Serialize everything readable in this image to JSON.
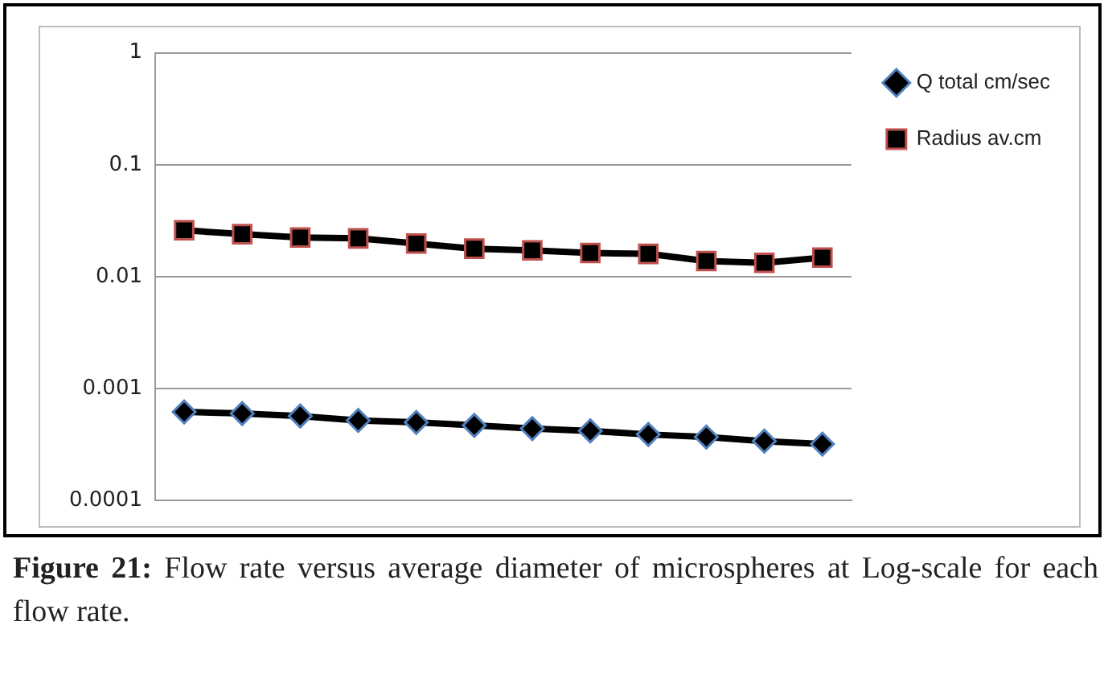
{
  "chart_data": {
    "type": "line",
    "categories": [
      null,
      null,
      null,
      null,
      null,
      null,
      null,
      null,
      null,
      null,
      null,
      null
    ],
    "series": [
      {
        "name": "Q total cm/sec",
        "color": "#000000",
        "marker": "diamond",
        "values": [
          0.00062,
          0.0006,
          0.00057,
          0.00052,
          0.0005,
          0.00047,
          0.00044,
          0.00042,
          0.00039,
          0.00037,
          0.00034,
          0.00032
        ]
      },
      {
        "name": "Radius av.cm",
        "color": "#000000",
        "marker": "square",
        "values": [
          0.026,
          0.024,
          0.0224,
          0.022,
          0.0198,
          0.0178,
          0.0172,
          0.0163,
          0.016,
          0.0138,
          0.0133,
          0.0148
        ]
      }
    ],
    "log": "y",
    "ylim": [
      0.0001,
      1
    ],
    "yticks": [
      0.0001,
      0.001,
      0.01,
      0.1,
      1
    ],
    "grid": "y",
    "legend": "top right",
    "tick_labels": "y",
    "line_style": "solid",
    "annotations": [
      "Figure 21: Flow rate versus average diameter of microspheres at Log-scale for each flow rate."
    ]
  }
}
